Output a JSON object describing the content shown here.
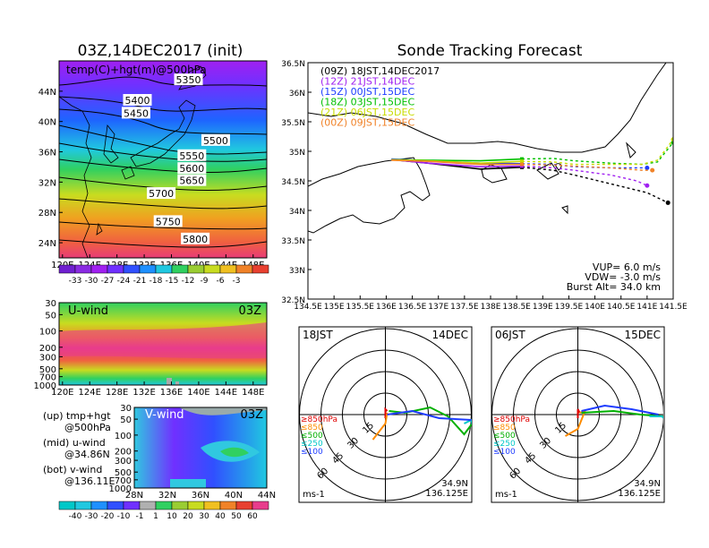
{
  "chart_data": [
    {
      "type": "heatmap",
      "id": "map500",
      "title": "03Z,14DEC2017 (init)",
      "label": "temp(C)+hgt(m)@500hPa",
      "x_ticks": [
        "120E",
        "124E",
        "128E",
        "132E",
        "136E",
        "140E",
        "144E",
        "148E"
      ],
      "y_ticks": [
        "44N",
        "40N",
        "36N",
        "32N",
        "28N",
        "24N"
      ],
      "contour_labels": [
        {
          "value": "5350",
          "lon": 138.5,
          "lat": 45.5
        },
        {
          "value": "5400",
          "lon": 131.0,
          "lat": 42.8
        },
        {
          "value": "5450",
          "lon": 130.8,
          "lat": 41.1
        },
        {
          "value": "5500",
          "lon": 142.5,
          "lat": 37.5
        },
        {
          "value": "5550",
          "lon": 139.0,
          "lat": 35.5
        },
        {
          "value": "5600",
          "lon": 139.0,
          "lat": 33.8
        },
        {
          "value": "5650",
          "lon": 139.0,
          "lat": 32.2
        },
        {
          "value": "5700",
          "lon": 134.5,
          "lat": 30.5
        },
        {
          "value": "5750",
          "lon": 135.5,
          "lat": 26.8
        },
        {
          "value": "5800",
          "lon": 139.5,
          "lat": 24.5
        }
      ],
      "colorbar_ticks": [
        "-33",
        "-30",
        "-27",
        "-24",
        "-21",
        "-18",
        "-15",
        "-12",
        "-9",
        "-6",
        "-3"
      ]
    },
    {
      "type": "area",
      "id": "uwind",
      "label": "U-wind",
      "time": "03Z",
      "x_ticks": [
        "120E",
        "124E",
        "128E",
        "132E",
        "136E",
        "140E",
        "144E",
        "148E"
      ],
      "y_ticks": [
        "30",
        "50",
        "100",
        "200",
        "300",
        "500",
        "700",
        "1000"
      ]
    },
    {
      "type": "area",
      "id": "vwind",
      "label": "V-wind",
      "time": "03Z",
      "x_ticks": [
        "28N",
        "32N",
        "36N",
        "40N",
        "44N"
      ],
      "y_ticks": [
        "30",
        "50",
        "100",
        "200",
        "300",
        "500",
        "700",
        "1000"
      ],
      "colorbar_ticks": [
        "-40",
        "-30",
        "-20",
        "-10",
        "-1",
        "1",
        "10",
        "20",
        "30",
        "40",
        "50",
        "60"
      ]
    },
    {
      "type": "line",
      "id": "track",
      "title": "Sonde Tracking Forecast",
      "xlim": [
        134.5,
        141.5
      ],
      "ylim": [
        32.5,
        36.5
      ],
      "x_ticks": [
        "134.5E",
        "135E",
        "135.5E",
        "136E",
        "136.5E",
        "137E",
        "137.5E",
        "138E",
        "138.5E",
        "139E",
        "139.5E",
        "140E",
        "140.5E",
        "141E",
        "141.5E"
      ],
      "y_ticks": [
        "36.5N",
        "36N",
        "35.5N",
        "35N",
        "34.5N",
        "34N",
        "33.5N",
        "33N",
        "32.5N"
      ],
      "series": [
        {
          "name": "(09Z)  18JST,14DEC2017",
          "color": "#000000",
          "x": [
            136.1,
            136.8,
            137.8,
            138.6,
            139.2,
            139.6,
            140.3,
            141.0,
            141.4
          ],
          "y": [
            34.86,
            34.8,
            34.7,
            34.73,
            34.68,
            34.6,
            34.45,
            34.3,
            34.13
          ]
        },
        {
          "name": "(12Z)  21JST,14DEC",
          "color": "#a020f0",
          "x": [
            136.1,
            136.8,
            137.8,
            138.6,
            139.2,
            139.6,
            140.3,
            140.8,
            141.0
          ],
          "y": [
            34.86,
            34.8,
            34.74,
            34.75,
            34.72,
            34.68,
            34.6,
            34.5,
            34.42
          ]
        },
        {
          "name": "(15Z)  00JST,15DEC",
          "color": "#1e3cff",
          "x": [
            136.1,
            136.8,
            137.8,
            138.6,
            139.2,
            139.6,
            140.3,
            141.0
          ],
          "y": [
            34.87,
            34.84,
            34.8,
            34.79,
            34.78,
            34.74,
            34.72,
            34.72
          ]
        },
        {
          "name": "(18Z)  03JST,15DEC",
          "color": "#00c000",
          "x": [
            136.1,
            136.8,
            137.8,
            138.6,
            139.2,
            139.6,
            140.3,
            140.9,
            141.2,
            141.5
          ],
          "y": [
            34.86,
            34.85,
            34.84,
            34.87,
            34.88,
            34.84,
            34.8,
            34.78,
            34.82,
            35.15
          ]
        },
        {
          "name": "(21Z)  06JST,15DEC",
          "color": "#c8dc00",
          "x": [
            136.1,
            136.8,
            137.8,
            138.6,
            139.2,
            139.6,
            140.3,
            140.9,
            141.2,
            141.5
          ],
          "y": [
            34.86,
            34.84,
            34.8,
            34.83,
            34.82,
            34.78,
            34.78,
            34.78,
            34.85,
            35.2
          ]
        },
        {
          "name": "(00Z)  09JST,15DEC",
          "color": "#f08228",
          "x": [
            136.1,
            136.8,
            137.8,
            138.6,
            139.2,
            139.6,
            140.3,
            140.9,
            141.1
          ],
          "y": [
            34.85,
            34.83,
            34.78,
            34.78,
            34.77,
            34.75,
            34.72,
            34.68,
            34.68
          ]
        }
      ],
      "annotation": [
        "VUP= 6.0 m/s",
        "VDW= -3.0 m/s",
        "Burst Alt= 34.0 km"
      ]
    },
    {
      "type": "scatter",
      "id": "polar1",
      "time": "18JST",
      "date": "14DEC",
      "rings": [
        "15",
        "30",
        "45",
        "60"
      ],
      "legend": [
        "≥850hPa",
        "≤850",
        "≤500",
        "≤250",
        "≤100"
      ],
      "legend_colors": [
        "#e00000",
        "#ff8c00",
        "#00b000",
        "#00c8c8",
        "#1e3cff"
      ],
      "unit": "ms-1",
      "location": [
        "34.9N",
        "136.125E"
      ]
    },
    {
      "type": "scatter",
      "id": "polar2",
      "time": "06JST",
      "date": "15DEC",
      "rings": [
        "15",
        "30",
        "45",
        "60"
      ],
      "legend": [
        "≥850hPa",
        "≤850",
        "≤500",
        "≤250",
        "≤100"
      ],
      "legend_colors": [
        "#e00000",
        "#ff8c00",
        "#00b000",
        "#00c8c8",
        "#1e3cff"
      ],
      "unit": "ms-1",
      "location": [
        "34.9N",
        "136.125E"
      ]
    }
  ],
  "notes": [
    {
      "a": "(up) tmp+hgt",
      "b": "@500hPa"
    },
    {
      "a": "(mid) u-wind",
      "b": "@34.86N"
    },
    {
      "a": "(bot) v-wind",
      "b": "@136.11E"
    }
  ]
}
